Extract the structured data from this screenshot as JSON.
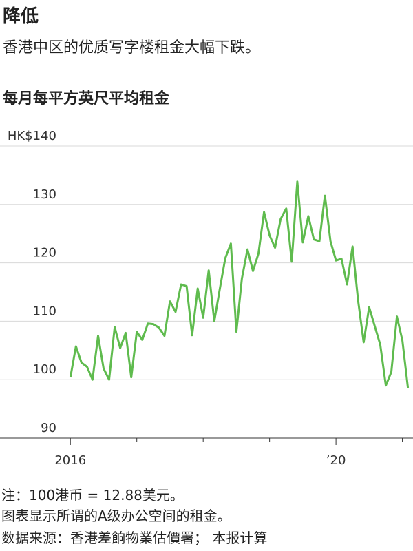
{
  "chart_data": {
    "type": "line",
    "title": "降低",
    "subtitle": "香港中区的优质写字楼租金大幅下跌。",
    "chart_title": "每月每平方英尺平均租金",
    "notes": [
      "注：100港币 = 12.88美元。",
      "图表显示所谓的A级办公空间的租金。",
      "数据来源：香港差餉物業估價署； 本报计算"
    ],
    "color": "#5fbb4e",
    "x": [
      2016,
      2016.083,
      2016.167,
      2016.25,
      2016.333,
      2016.417,
      2016.5,
      2016.583,
      2016.667,
      2016.75,
      2016.833,
      2016.917,
      2017,
      2017.083,
      2017.167,
      2017.25,
      2017.333,
      2017.417,
      2017.5,
      2017.583,
      2017.667,
      2017.75,
      2017.833,
      2017.917,
      2018,
      2018.083,
      2018.167,
      2018.25,
      2018.333,
      2018.417,
      2018.5,
      2018.583,
      2018.667,
      2018.75,
      2018.833,
      2018.917,
      2019,
      2019.083,
      2019.167,
      2019.25,
      2019.333,
      2019.417,
      2019.5,
      2019.583,
      2019.667,
      2019.75,
      2019.833,
      2019.917,
      2020,
      2020.083,
      2020.167,
      2020.25,
      2020.333,
      2020.417,
      2020.5,
      2020.583,
      2020.667,
      2020.75,
      2020.833,
      2020.917,
      2021,
      2021.083
    ],
    "values": [
      100.4,
      105.7,
      102.9,
      102.2,
      100,
      107.5,
      101.9,
      100,
      109,
      105.4,
      108,
      100.4,
      108.2,
      106.8,
      109.6,
      109.5,
      108.9,
      107.5,
      113.4,
      111.6,
      116.3,
      116,
      107.6,
      115.6,
      110.6,
      118.7,
      110,
      115.5,
      120.8,
      123.3,
      108.2,
      117.3,
      122.3,
      118.6,
      121.6,
      128.7,
      124.7,
      122.6,
      127.5,
      129.3,
      120.2,
      133.9,
      123.5,
      128,
      124,
      123.7,
      131.5,
      123.7,
      120.4,
      120.7,
      116.3,
      122.8,
      113.6,
      106.4,
      112.4,
      109.2,
      106,
      99,
      101.3,
      110.8,
      106.7,
      98.6
    ],
    "ylim": [
      90,
      140
    ],
    "yticks": [
      90,
      100,
      110,
      120,
      130,
      {
        "value": 140,
        "label": "HK$140"
      }
    ],
    "xlim": [
      2014.94,
      2021.16
    ],
    "xticks": [
      2016,
      {
        "value": 2020,
        "label": "’20"
      }
    ],
    "xminor": [
      2017,
      2018,
      2019,
      2021
    ],
    "grid": true
  }
}
